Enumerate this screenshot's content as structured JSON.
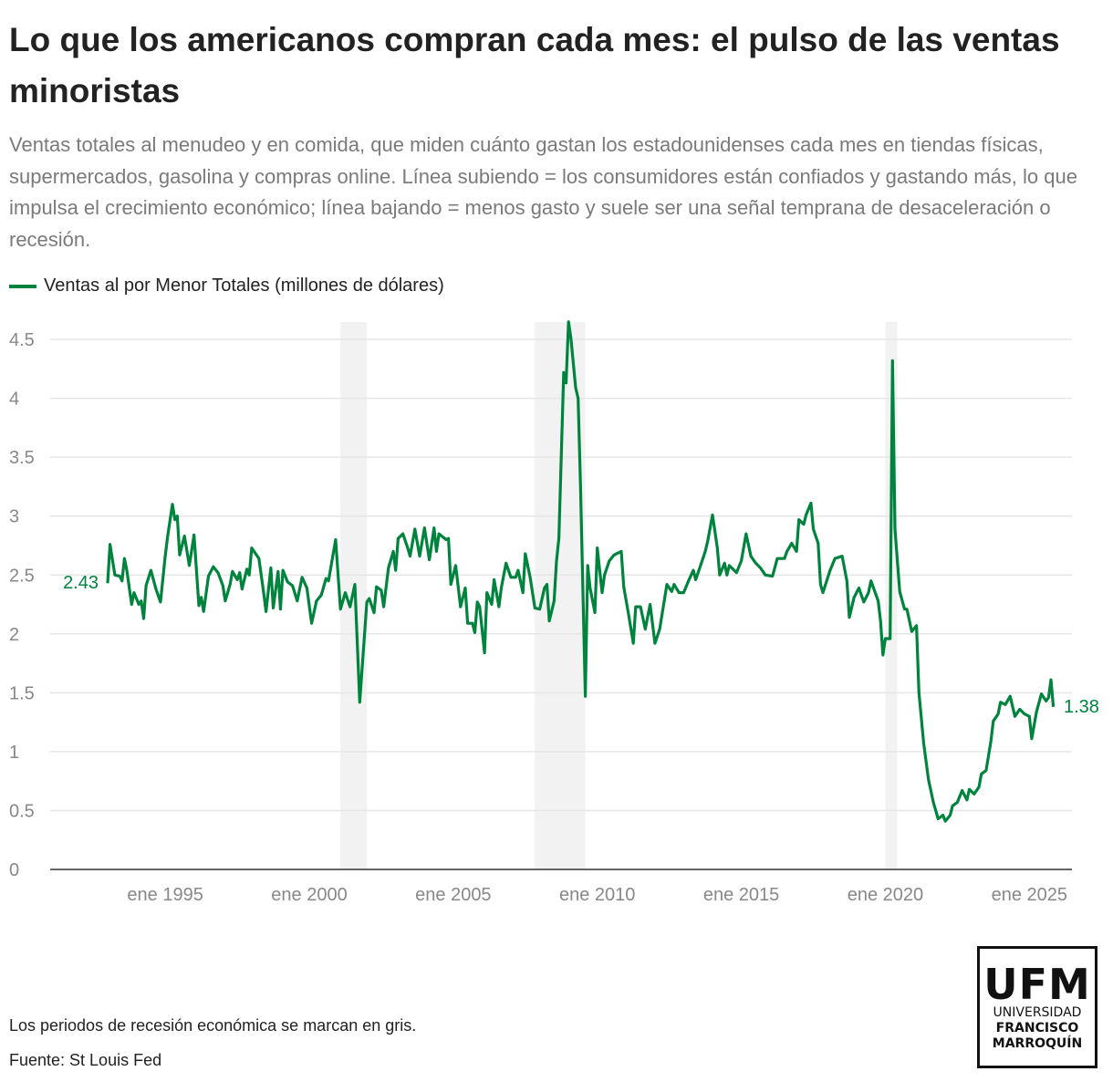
{
  "header": {
    "title": "Lo que los americanos compran cada mes: el pulso de las ventas minoristas",
    "subtitle": "Ventas totales al menudeo y en comida, que miden cuánto gastan los estadounidenses cada mes en tiendas físicas, supermercados, gasolina y compras online. Línea subiendo = los consumidores están confiados y gastando más, lo que impulsa el crecimiento económico; línea bajando = menos gasto y suele ser una señal temprana de desaceleración o recesión."
  },
  "footer": {
    "note": "Los periodos de recesión económica se marcan en gris.",
    "source": "Fuente: St Louis Fed"
  },
  "logo": {
    "big": "UFM",
    "line1": "UNIVERSIDAD",
    "line2": "FRANCISCO",
    "line3": "MARROQUÍN"
  },
  "colors": {
    "line": "#00843d",
    "recession": "#f2f2f2",
    "grid": "#e6e6e6",
    "axis": "#333333",
    "tick_text": "#888888"
  },
  "chart_data": {
    "type": "line",
    "title": "Lo que los americanos compran cada mes: el pulso de las ventas minoristas",
    "xlabel": "",
    "ylabel": "",
    "ylim": [
      0,
      4.5
    ],
    "yticks": [
      "0",
      "0.5",
      "1",
      "1.5",
      "2",
      "2.5",
      "3",
      "3.5",
      "4",
      "4.5"
    ],
    "xticks": [
      {
        "date": "1995-01",
        "label": "ene 1995"
      },
      {
        "date": "2000-01",
        "label": "ene 2000"
      },
      {
        "date": "2005-01",
        "label": "ene 2005"
      },
      {
        "date": "2010-01",
        "label": "ene 2010"
      },
      {
        "date": "2015-01",
        "label": "ene 2015"
      },
      {
        "date": "2020-01",
        "label": "ene 2020"
      },
      {
        "date": "2025-01",
        "label": "ene 2025"
      }
    ],
    "grid": true,
    "legend_placement": "top-left",
    "recessions": [
      [
        "2001-03",
        "2001-11"
      ],
      [
        "2007-12",
        "2009-06"
      ],
      [
        "2020-02",
        "2020-04"
      ]
    ],
    "first_label": "2.43",
    "last_label": "1.38",
    "series": [
      {
        "name": "Ventas al por Menor Totales (millones de dólares)",
        "points": [
          [
            "1993-01",
            2.43
          ],
          [
            "1993-02",
            2.76
          ],
          [
            "1993-04",
            2.5
          ],
          [
            "1993-06",
            2.49
          ],
          [
            "1993-07",
            2.45
          ],
          [
            "1993-08",
            2.64
          ],
          [
            "1993-09",
            2.54
          ],
          [
            "1993-11",
            2.25
          ],
          [
            "1993-12",
            2.35
          ],
          [
            "1994-02",
            2.25
          ],
          [
            "1994-03",
            2.28
          ],
          [
            "1994-04",
            2.13
          ],
          [
            "1994-05",
            2.41
          ],
          [
            "1994-07",
            2.54
          ],
          [
            "1994-09",
            2.39
          ],
          [
            "1994-11",
            2.27
          ],
          [
            "1995-01",
            2.66
          ],
          [
            "1995-02",
            2.83
          ],
          [
            "1995-04",
            3.1
          ],
          [
            "1995-05",
            2.97
          ],
          [
            "1995-06",
            3.0
          ],
          [
            "1995-07",
            2.67
          ],
          [
            "1995-09",
            2.83
          ],
          [
            "1995-11",
            2.58
          ],
          [
            "1996-01",
            2.84
          ],
          [
            "1996-03",
            2.24
          ],
          [
            "1996-04",
            2.31
          ],
          [
            "1996-05",
            2.19
          ],
          [
            "1996-07",
            2.49
          ],
          [
            "1996-09",
            2.57
          ],
          [
            "1996-11",
            2.52
          ],
          [
            "1997-01",
            2.41
          ],
          [
            "1997-02",
            2.28
          ],
          [
            "1997-04",
            2.42
          ],
          [
            "1997-05",
            2.53
          ],
          [
            "1997-07",
            2.46
          ],
          [
            "1997-08",
            2.52
          ],
          [
            "1997-09",
            2.38
          ],
          [
            "1997-11",
            2.55
          ],
          [
            "1997-12",
            2.5
          ],
          [
            "1998-01",
            2.73
          ],
          [
            "1998-04",
            2.64
          ],
          [
            "1998-06",
            2.35
          ],
          [
            "1998-07",
            2.19
          ],
          [
            "1998-09",
            2.56
          ],
          [
            "1998-10",
            2.22
          ],
          [
            "1998-12",
            2.53
          ],
          [
            "1999-01",
            2.21
          ],
          [
            "1999-02",
            2.54
          ],
          [
            "1999-04",
            2.44
          ],
          [
            "1999-06",
            2.41
          ],
          [
            "1999-08",
            2.28
          ],
          [
            "1999-10",
            2.48
          ],
          [
            "1999-12",
            2.39
          ],
          [
            "2000-02",
            2.09
          ],
          [
            "2000-04",
            2.28
          ],
          [
            "2000-06",
            2.33
          ],
          [
            "2000-08",
            2.47
          ],
          [
            "2000-09",
            2.45
          ],
          [
            "2000-12",
            2.8
          ],
          [
            "2001-02",
            2.21
          ],
          [
            "2001-04",
            2.35
          ],
          [
            "2001-06",
            2.23
          ],
          [
            "2001-08",
            2.42
          ],
          [
            "2001-10",
            1.42
          ],
          [
            "2002-01",
            2.27
          ],
          [
            "2002-02",
            2.3
          ],
          [
            "2002-04",
            2.18
          ],
          [
            "2002-05",
            2.4
          ],
          [
            "2002-07",
            2.37
          ],
          [
            "2002-08",
            2.23
          ],
          [
            "2002-10",
            2.56
          ],
          [
            "2002-12",
            2.7
          ],
          [
            "2003-01",
            2.54
          ],
          [
            "2003-02",
            2.81
          ],
          [
            "2003-04",
            2.85
          ],
          [
            "2003-06",
            2.73
          ],
          [
            "2003-07",
            2.66
          ],
          [
            "2003-09",
            2.89
          ],
          [
            "2003-11",
            2.66
          ],
          [
            "2004-01",
            2.9
          ],
          [
            "2004-03",
            2.63
          ],
          [
            "2004-05",
            2.9
          ],
          [
            "2004-06",
            2.7
          ],
          [
            "2004-07",
            2.85
          ],
          [
            "2004-10",
            2.8
          ],
          [
            "2004-11",
            2.81
          ],
          [
            "2004-12",
            2.42
          ],
          [
            "2005-02",
            2.58
          ],
          [
            "2005-04",
            2.23
          ],
          [
            "2005-06",
            2.39
          ],
          [
            "2005-07",
            2.09
          ],
          [
            "2005-09",
            2.09
          ],
          [
            "2005-10",
            2.01
          ],
          [
            "2005-11",
            2.27
          ],
          [
            "2005-12",
            2.23
          ],
          [
            "2006-02",
            1.84
          ],
          [
            "2006-03",
            2.35
          ],
          [
            "2006-05",
            2.25
          ],
          [
            "2006-06",
            2.46
          ],
          [
            "2006-08",
            2.23
          ],
          [
            "2006-09",
            2.39
          ],
          [
            "2006-11",
            2.6
          ],
          [
            "2007-01",
            2.48
          ],
          [
            "2007-03",
            2.48
          ],
          [
            "2007-04",
            2.54
          ],
          [
            "2007-06",
            2.35
          ],
          [
            "2007-07",
            2.68
          ],
          [
            "2007-09",
            2.48
          ],
          [
            "2007-11",
            2.22
          ],
          [
            "2008-01",
            2.21
          ],
          [
            "2008-03",
            2.39
          ],
          [
            "2008-04",
            2.42
          ],
          [
            "2008-05",
            2.11
          ],
          [
            "2008-07",
            2.28
          ],
          [
            "2008-08",
            2.62
          ],
          [
            "2008-09",
            2.81
          ],
          [
            "2008-11",
            4.22
          ],
          [
            "2008-12",
            4.13
          ],
          [
            "2009-01",
            4.65
          ],
          [
            "2009-02",
            4.51
          ],
          [
            "2009-04",
            4.09
          ],
          [
            "2009-05",
            4.0
          ],
          [
            "2009-06",
            3.26
          ],
          [
            "2009-08",
            1.47
          ],
          [
            "2009-09",
            2.58
          ],
          [
            "2009-10",
            2.39
          ],
          [
            "2009-12",
            2.18
          ],
          [
            "2010-01",
            2.73
          ],
          [
            "2010-03",
            2.35
          ],
          [
            "2010-04",
            2.5
          ],
          [
            "2010-06",
            2.62
          ],
          [
            "2010-08",
            2.67
          ],
          [
            "2010-11",
            2.7
          ],
          [
            "2010-12",
            2.4
          ],
          [
            "2011-02",
            2.17
          ],
          [
            "2011-04",
            1.92
          ],
          [
            "2011-05",
            2.23
          ],
          [
            "2011-07",
            2.23
          ],
          [
            "2011-09",
            2.04
          ],
          [
            "2011-11",
            2.25
          ],
          [
            "2012-01",
            1.92
          ],
          [
            "2012-03",
            2.04
          ],
          [
            "2012-04",
            2.17
          ],
          [
            "2012-06",
            2.42
          ],
          [
            "2012-08",
            2.36
          ],
          [
            "2012-09",
            2.42
          ],
          [
            "2012-11",
            2.35
          ],
          [
            "2013-01",
            2.35
          ],
          [
            "2013-03",
            2.45
          ],
          [
            "2013-05",
            2.54
          ],
          [
            "2013-06",
            2.46
          ],
          [
            "2013-08",
            2.58
          ],
          [
            "2013-10",
            2.7
          ],
          [
            "2013-11",
            2.79
          ],
          [
            "2014-01",
            3.01
          ],
          [
            "2014-03",
            2.73
          ],
          [
            "2014-04",
            2.5
          ],
          [
            "2014-06",
            2.6
          ],
          [
            "2014-07",
            2.5
          ],
          [
            "2014-08",
            2.58
          ],
          [
            "2014-11",
            2.52
          ],
          [
            "2015-01",
            2.62
          ],
          [
            "2015-03",
            2.85
          ],
          [
            "2015-05",
            2.66
          ],
          [
            "2015-07",
            2.6
          ],
          [
            "2015-09",
            2.56
          ],
          [
            "2015-11",
            2.5
          ],
          [
            "2016-02",
            2.49
          ],
          [
            "2016-04",
            2.64
          ],
          [
            "2016-07",
            2.64
          ],
          [
            "2016-08",
            2.7
          ],
          [
            "2016-10",
            2.77
          ],
          [
            "2016-12",
            2.7
          ],
          [
            "2017-01",
            2.97
          ],
          [
            "2017-03",
            2.93
          ],
          [
            "2017-04",
            3.01
          ],
          [
            "2017-06",
            3.11
          ],
          [
            "2017-07",
            2.89
          ],
          [
            "2017-09",
            2.77
          ],
          [
            "2017-10",
            2.42
          ],
          [
            "2017-11",
            2.35
          ],
          [
            "2018-02",
            2.54
          ],
          [
            "2018-04",
            2.64
          ],
          [
            "2018-07",
            2.66
          ],
          [
            "2018-09",
            2.45
          ],
          [
            "2018-10",
            2.14
          ],
          [
            "2018-12",
            2.31
          ],
          [
            "2019-02",
            2.39
          ],
          [
            "2019-04",
            2.27
          ],
          [
            "2019-06",
            2.35
          ],
          [
            "2019-07",
            2.45
          ],
          [
            "2019-10",
            2.28
          ],
          [
            "2019-11",
            2.11
          ],
          [
            "2019-12",
            1.82
          ],
          [
            "2020-01",
            1.96
          ],
          [
            "2020-03",
            1.96
          ],
          [
            "2020-04",
            4.32
          ],
          [
            "2020-05",
            2.89
          ],
          [
            "2020-07",
            2.36
          ],
          [
            "2020-09",
            2.21
          ],
          [
            "2020-10",
            2.21
          ],
          [
            "2020-12",
            2.02
          ],
          [
            "2021-02",
            2.07
          ],
          [
            "2021-03",
            1.5
          ],
          [
            "2021-05",
            1.07
          ],
          [
            "2021-07",
            0.76
          ],
          [
            "2021-09",
            0.57
          ],
          [
            "2021-11",
            0.43
          ],
          [
            "2022-01",
            0.46
          ],
          [
            "2022-02",
            0.41
          ],
          [
            "2022-04",
            0.46
          ],
          [
            "2022-05",
            0.54
          ],
          [
            "2022-07",
            0.57
          ],
          [
            "2022-09",
            0.67
          ],
          [
            "2022-11",
            0.59
          ],
          [
            "2022-12",
            0.68
          ],
          [
            "2023-02",
            0.64
          ],
          [
            "2023-04",
            0.7
          ],
          [
            "2023-05",
            0.81
          ],
          [
            "2023-07",
            0.84
          ],
          [
            "2023-09",
            1.09
          ],
          [
            "2023-10",
            1.26
          ],
          [
            "2023-12",
            1.32
          ],
          [
            "2024-01",
            1.42
          ],
          [
            "2024-03",
            1.4
          ],
          [
            "2024-05",
            1.47
          ],
          [
            "2024-07",
            1.3
          ],
          [
            "2024-09",
            1.36
          ],
          [
            "2024-11",
            1.32
          ],
          [
            "2025-01",
            1.3
          ],
          [
            "2025-02",
            1.11
          ],
          [
            "2025-04",
            1.34
          ],
          [
            "2025-06",
            1.49
          ],
          [
            "2025-08",
            1.43
          ],
          [
            "2025-09",
            1.46
          ],
          [
            "2025-10",
            1.61
          ],
          [
            "2025-11",
            1.38
          ]
        ]
      }
    ]
  }
}
